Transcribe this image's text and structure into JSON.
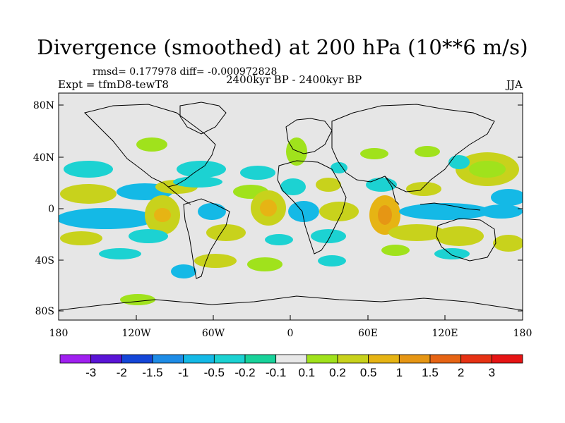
{
  "header": {
    "title": "Divergence (smoothed) at 200 hPa (10**6 m/s)",
    "rmsd_line": "rmsd= 0.177978 diff= -0.000972828",
    "experiment": "Expt = tfmD8-tewT8",
    "period": "2400kyr BP - 2400kyr BP",
    "season": "JJA"
  },
  "map": {
    "lat_ticks": [
      "80N",
      "40N",
      "0",
      "40S",
      "80S"
    ],
    "lon_ticks": [
      "180",
      "120W",
      "60W",
      "0",
      "60E",
      "120E",
      "180"
    ],
    "background_color": "#e6e6e6"
  },
  "colorbar": {
    "colors": [
      "#a020f0",
      "#5a14d6",
      "#1446d8",
      "#1e8ce6",
      "#14b9e6",
      "#1cd2d2",
      "#18d29a",
      "#e8e8e8",
      "#a0e21c",
      "#c8d21c",
      "#e6b414",
      "#e69614",
      "#e66414",
      "#e63214",
      "#e61414"
    ],
    "labels": [
      "-3",
      "-2",
      "-1.5",
      "-1",
      "-0.5",
      "-0.2",
      "-0.1",
      "0.1",
      "0.2",
      "0.5",
      "1",
      "1.5",
      "2",
      "3"
    ]
  }
}
